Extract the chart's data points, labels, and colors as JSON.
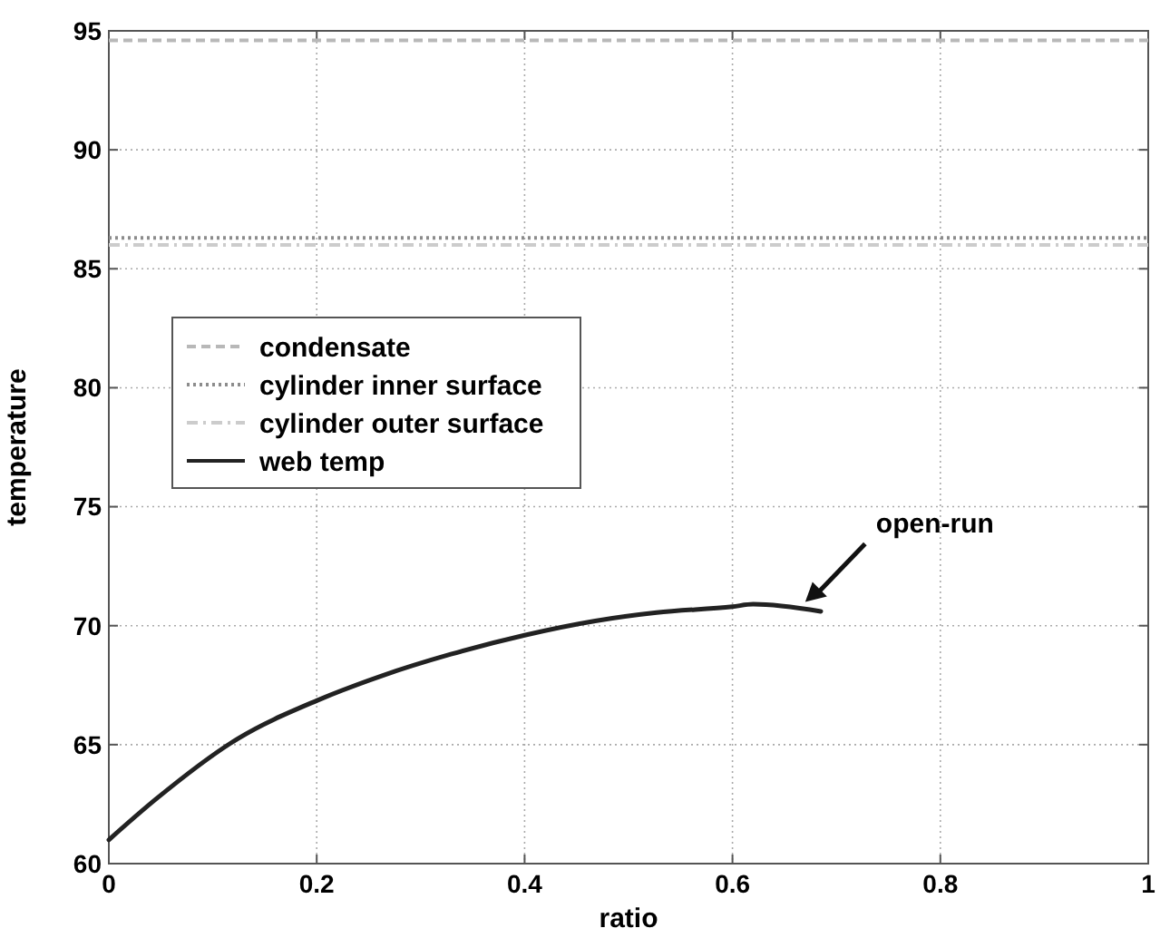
{
  "chart_data": {
    "type": "line",
    "xlabel": "ratio",
    "ylabel": "temperature",
    "xlim": [
      0,
      1
    ],
    "ylim": [
      60,
      95
    ],
    "xticks": [
      0,
      {
        "value": 0.2,
        "label": "0.2"
      },
      {
        "value": 0.4,
        "label": "0.4"
      },
      {
        "value": 0.6,
        "label": "0.6"
      },
      {
        "value": 0.8,
        "label": "0.8"
      },
      1
    ],
    "yticks": [
      60,
      65,
      70,
      75,
      80,
      85,
      90,
      95
    ],
    "grid": true,
    "legend": "left",
    "series": [
      {
        "name": "condensate",
        "color": "#b8b8b8",
        "line_style": "dashed",
        "x": [
          0,
          1
        ],
        "values": [
          94.6,
          94.6
        ]
      },
      {
        "name": "cylinder inner surface",
        "color": "#8c8c8c",
        "line_style": "dotted",
        "x": [
          0,
          1
        ],
        "values": [
          86.3,
          86.3
        ]
      },
      {
        "name": "cylinder outer surface",
        "color": "#cccccc",
        "line_style": "dashdot",
        "x": [
          0,
          1
        ],
        "values": [
          86.0,
          86.0
        ]
      },
      {
        "name": "web temp",
        "color": "#222222",
        "line_style": "solid",
        "x": [
          0,
          0.045,
          0.124,
          0.2,
          0.263,
          0.329,
          0.4,
          0.468,
          0.527,
          0.6,
          0.62,
          0.685
        ],
        "values": [
          61.0,
          62.7,
          65.25,
          66.85,
          67.9,
          68.8,
          69.6,
          70.2,
          70.55,
          70.8,
          70.9,
          70.6
        ]
      }
    ],
    "annotations": [
      {
        "text": "open-run",
        "x": 0.67,
        "y": 71.0
      }
    ]
  }
}
